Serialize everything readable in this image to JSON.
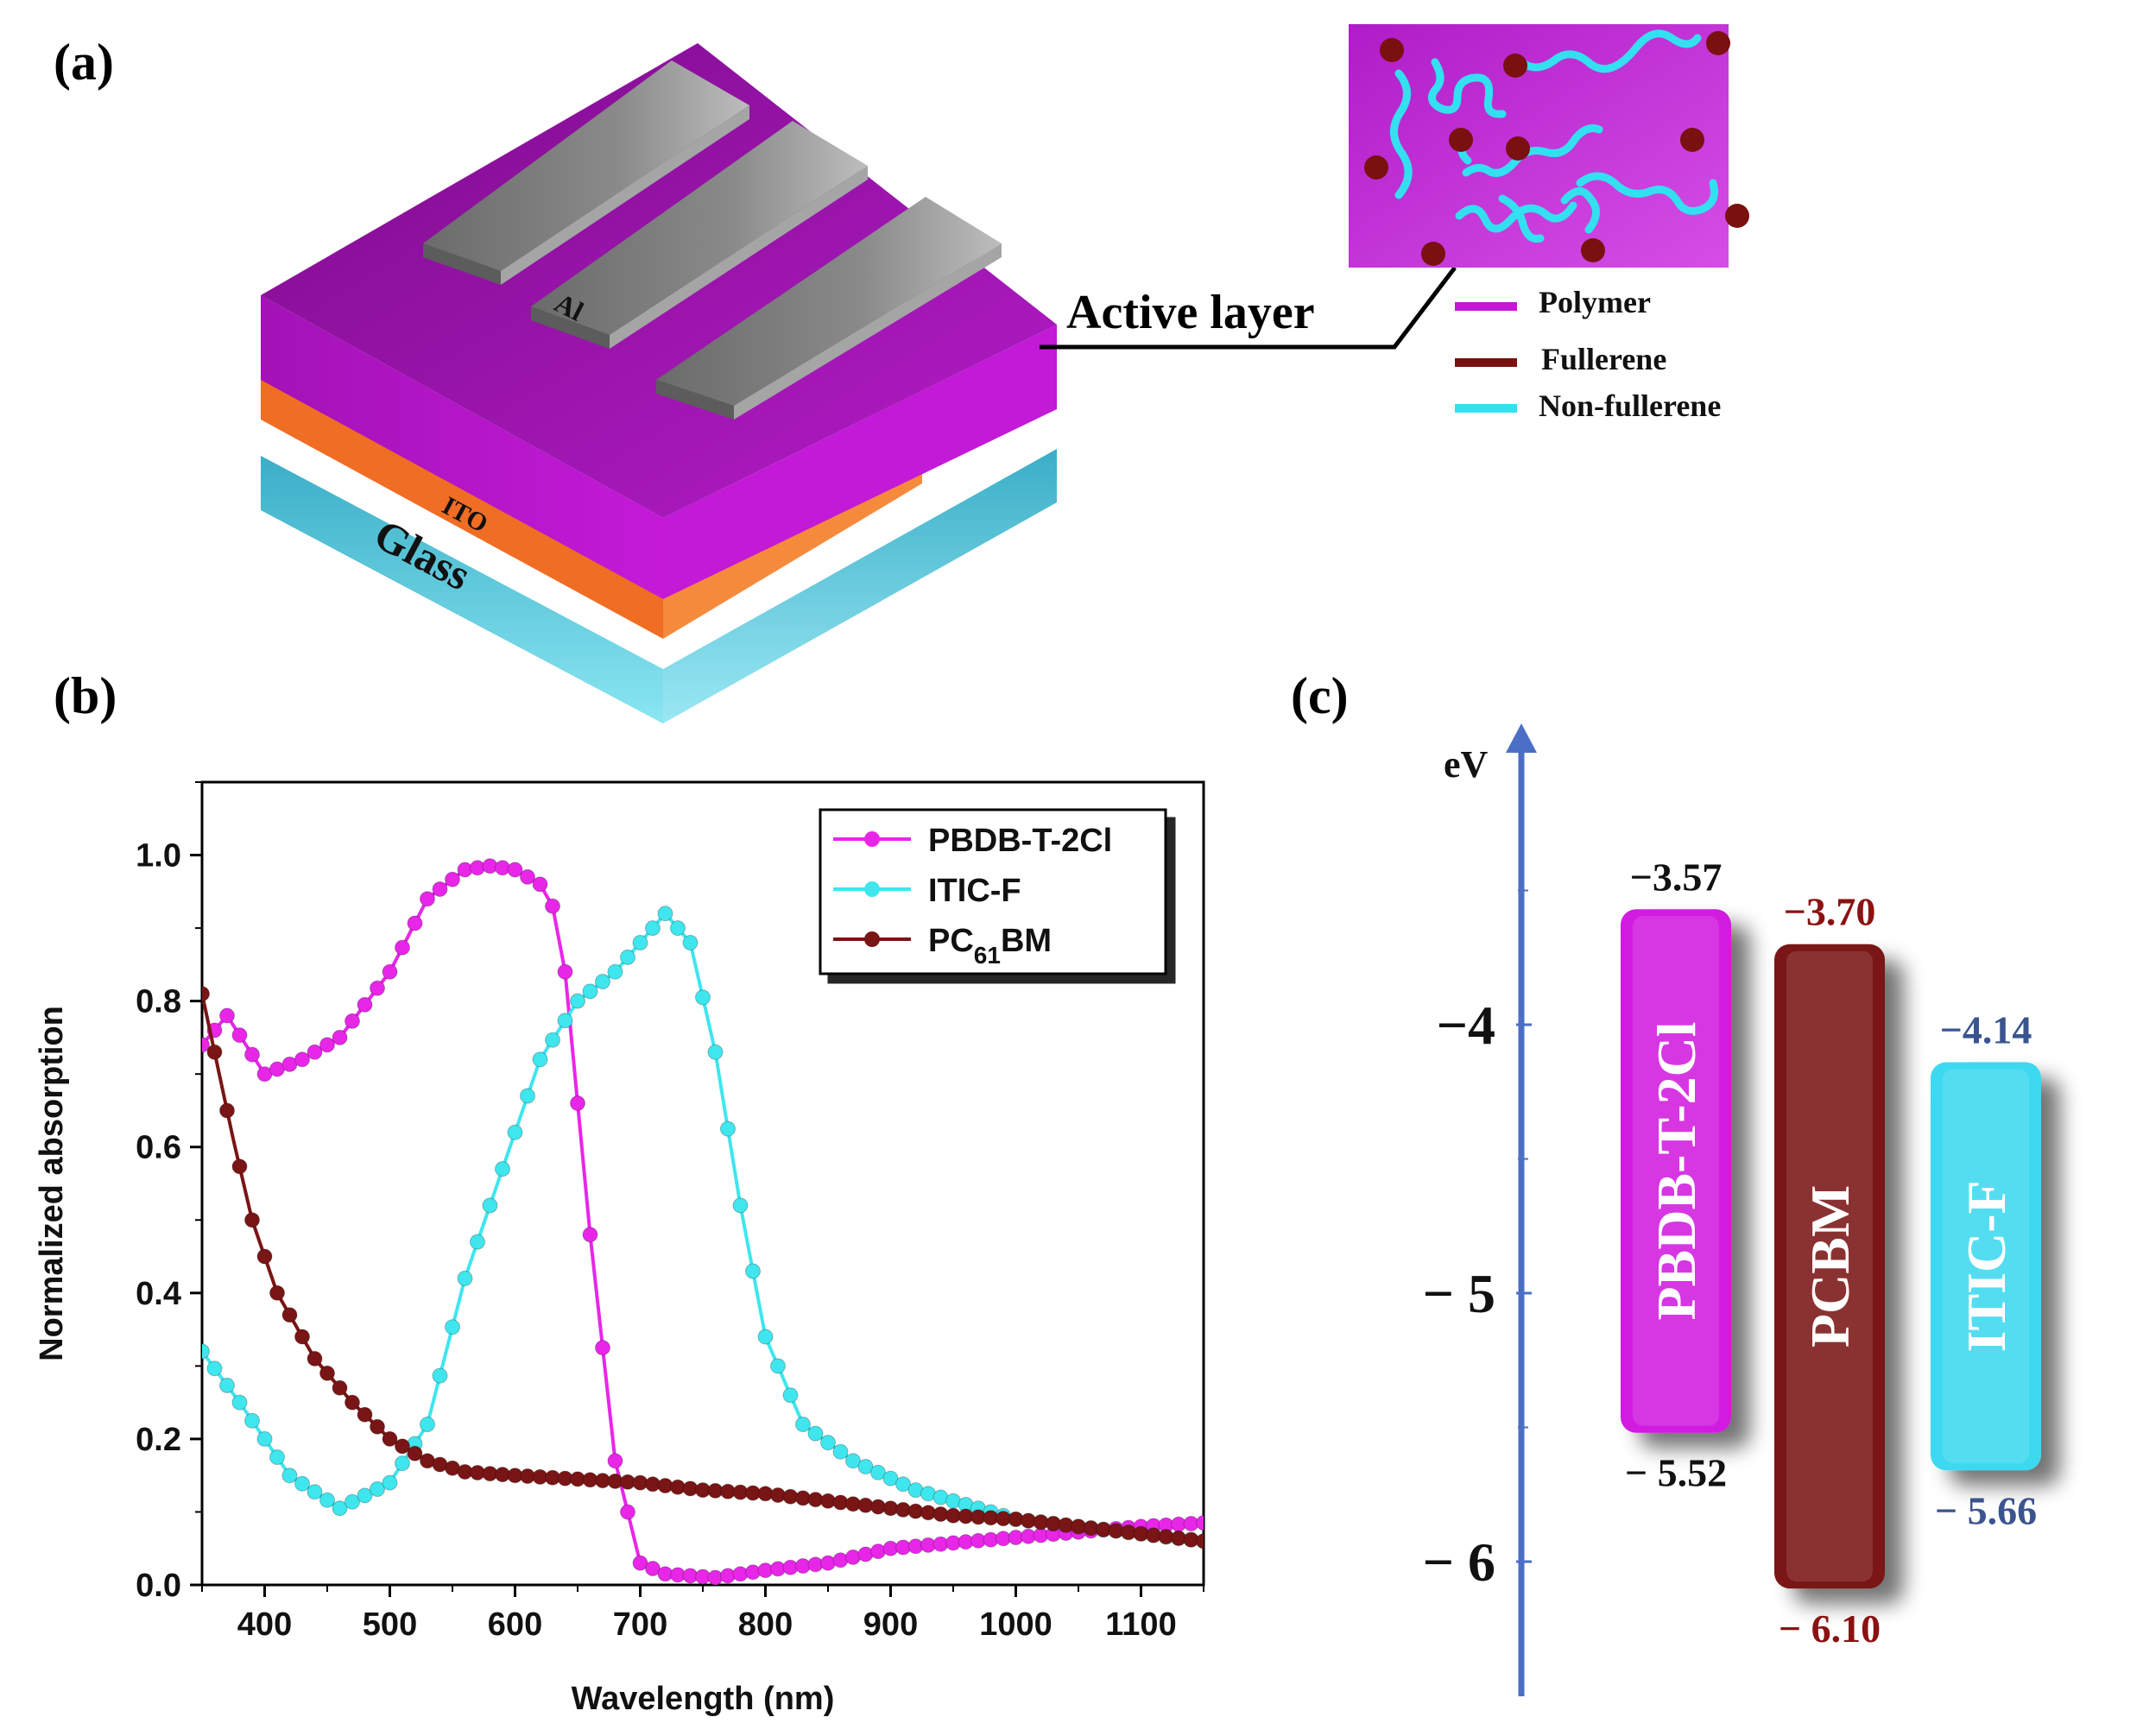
{
  "panel_a": {
    "label": "(a)",
    "layers": {
      "electrode": "Al",
      "ito": "ITO",
      "glass": "Glass"
    },
    "active_layer_label": "Active layer",
    "legend": [
      {
        "name": "Polymer",
        "color": "#c417d6"
      },
      {
        "name": "Fullerene",
        "color": "#7a1010"
      },
      {
        "name": "Non-fullerene",
        "color": "#33e0f0"
      }
    ],
    "colors": {
      "active": "#b313c4",
      "ito": "#f07a2a",
      "glass": "#4cc4d8",
      "electrode": "#7b7b7b"
    }
  },
  "panel_b": {
    "label": "(b)",
    "chart_data": {
      "type": "line",
      "title": "",
      "xlabel": "Wavelength (nm)",
      "ylabel": "Normalized absorption",
      "xlim": [
        350,
        1150
      ],
      "ylim": [
        0,
        1.1
      ],
      "xticks": [
        400,
        500,
        600,
        700,
        800,
        900,
        1000,
        1100
      ],
      "xtick_labels": [
        "400",
        "500",
        "600",
        "700",
        "800",
        "900",
        "1000",
        "1100"
      ],
      "yticks": [
        0.0,
        0.2,
        0.4,
        0.6,
        0.8,
        1.0
      ],
      "ytick_labels": [
        "0.0",
        "0.2",
        "0.4",
        "0.6",
        "0.8",
        "1.0"
      ],
      "legend_position": "top-right",
      "series": [
        {
          "name": "PBDB-T-2Cl",
          "color": "#e826e8",
          "x": [
            350,
            370,
            400,
            430,
            460,
            500,
            530,
            560,
            580,
            600,
            620,
            630,
            640,
            660,
            680,
            700,
            720,
            760,
            800,
            850,
            900,
            1000,
            1100,
            1150
          ],
          "y": [
            0.74,
            0.78,
            0.7,
            0.72,
            0.75,
            0.84,
            0.94,
            0.98,
            0.985,
            0.98,
            0.96,
            0.93,
            0.84,
            0.48,
            0.17,
            0.03,
            0.015,
            0.01,
            0.02,
            0.03,
            0.05,
            0.065,
            0.08,
            0.085
          ]
        },
        {
          "name": "ITIC-F",
          "color": "#3fe6ee",
          "x": [
            350,
            380,
            420,
            460,
            500,
            530,
            560,
            590,
            620,
            650,
            680,
            700,
            720,
            740,
            760,
            780,
            800,
            830,
            870,
            920,
            1000,
            1100,
            1150
          ],
          "y": [
            0.32,
            0.25,
            0.15,
            0.105,
            0.14,
            0.22,
            0.42,
            0.57,
            0.72,
            0.8,
            0.84,
            0.88,
            0.92,
            0.88,
            0.73,
            0.52,
            0.34,
            0.22,
            0.17,
            0.13,
            0.09,
            0.07,
            0.06
          ]
        },
        {
          "name": "PC61BM",
          "label_main": "PC",
          "label_sub": "61",
          "label_end": "BM",
          "color": "#7a1515",
          "x": [
            350,
            360,
            375,
            390,
            410,
            440,
            470,
            500,
            530,
            560,
            600,
            650,
            700,
            750,
            800,
            850,
            900,
            950,
            1000,
            1050,
            1100,
            1150
          ],
          "y": [
            0.81,
            0.73,
            0.61,
            0.5,
            0.4,
            0.31,
            0.25,
            0.2,
            0.17,
            0.155,
            0.15,
            0.145,
            0.14,
            0.13,
            0.125,
            0.115,
            0.105,
            0.095,
            0.09,
            0.08,
            0.07,
            0.06
          ]
        }
      ]
    }
  },
  "panel_c": {
    "label": "(c)",
    "axis_unit": "eV",
    "ylim": [
      -6.5,
      -3.0
    ],
    "tick_values": [
      -4,
      -5,
      -6
    ],
    "tick_labels": [
      "−4",
      "− 5",
      "− 6"
    ],
    "bars": [
      {
        "name": "PBDB-T-2Cl",
        "lumo": -3.57,
        "homo": -5.52,
        "lumo_label": "−3.57",
        "homo_label": "− 5.52",
        "color": "#d11ee0",
        "label_color": "#111111"
      },
      {
        "name": "PCBM",
        "lumo": -3.7,
        "homo": -6.1,
        "lumo_label": "−3.70",
        "homo_label": "− 6.10",
        "color": "#7a1212",
        "label_color": "#8b1212"
      },
      {
        "name": "ITIC-F",
        "lumo": -4.14,
        "homo": -5.66,
        "lumo_label": "−4.14",
        "homo_label": "− 5.66",
        "color": "#3dd9f0",
        "label_color": "#3a5490"
      }
    ],
    "axis_color": "#4a6fc4"
  }
}
